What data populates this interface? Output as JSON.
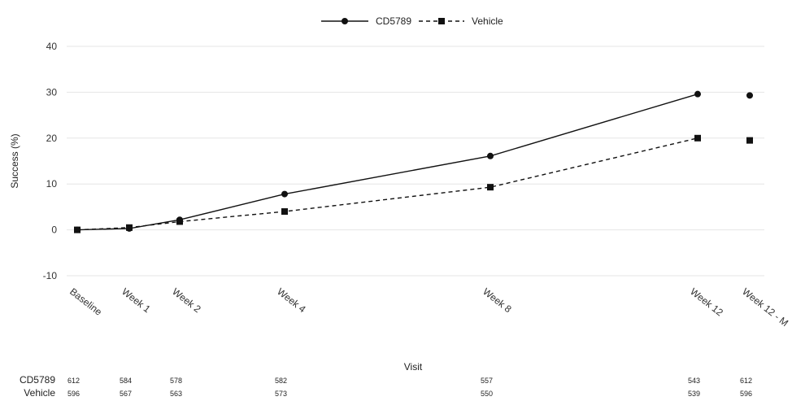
{
  "chart_data": {
    "type": "line",
    "title": "",
    "xlabel": "Visit",
    "ylabel": "Success (%)",
    "ylim": [
      -10,
      40
    ],
    "yticks": [
      -10,
      0,
      10,
      20,
      30,
      40
    ],
    "grid": true,
    "legend_position": "top-center",
    "categories": [
      "Baseline",
      "Week 1",
      "Week 2",
      "Week 4",
      "Week 8",
      "Week 12",
      "Week 12 - M"
    ],
    "series": [
      {
        "name": "CD5789",
        "style": "solid",
        "marker": "circle",
        "color": "#111111",
        "values": [
          0,
          0.3,
          2.2,
          7.8,
          16.1,
          29.6,
          29.3
        ],
        "connected_points": 6
      },
      {
        "name": "Vehicle",
        "style": "dashed",
        "marker": "square",
        "color": "#111111",
        "values": [
          0,
          0.5,
          1.8,
          4.0,
          9.3,
          20.0,
          19.5
        ],
        "connected_points": 6
      }
    ],
    "at_risk": {
      "rows": [
        {
          "label": "CD5789",
          "values": [
            "612",
            "584",
            "578",
            "582",
            "557",
            "543",
            "612"
          ]
        },
        {
          "label": "Vehicle",
          "values": [
            "596",
            "567",
            "563",
            "573",
            "550",
            "539",
            "596"
          ]
        }
      ]
    }
  }
}
